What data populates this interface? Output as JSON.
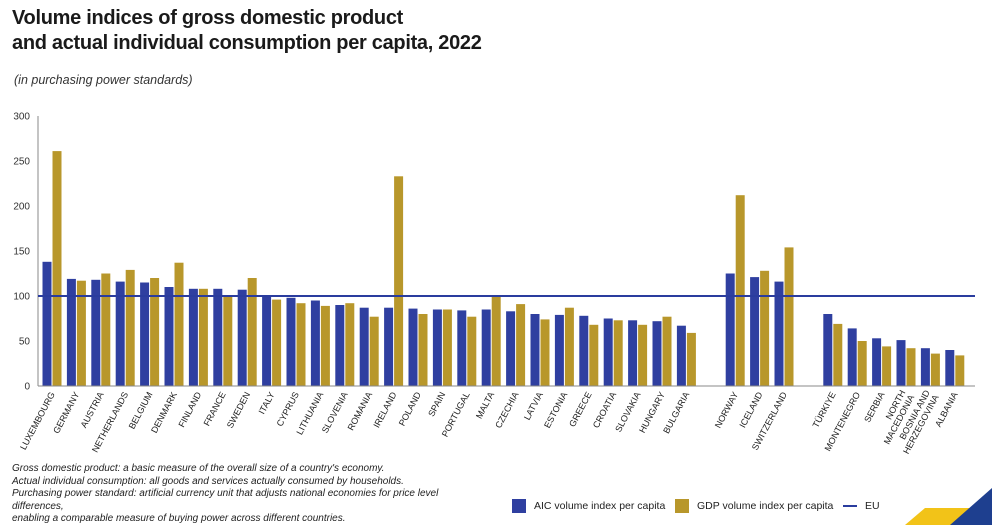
{
  "title_line1": "Volume indices of gross domestic product",
  "title_line2": "and actual individual consumption per capita, 2022",
  "subtitle": "(in purchasing power standards)",
  "notes": [
    "Gross domestic product: a basic measure of the overall size of a country's economy.",
    "Actual individual consumption: all goods and services actually consumed by households.",
    "Purchasing power standard: artificial currency unit that adjusts national economies for price level differences,",
    "enabling a comparable measure of buying power across different countries."
  ],
  "legend": {
    "aic": "AIC volume index per capita",
    "gdp": "GDP volume index per capita",
    "eu": "EU"
  },
  "colors": {
    "aic": "#2f3fa0",
    "gdp": "#b8972b",
    "eu_line": "#2a3c9e",
    "axis": "#888888",
    "corner_blue": "#1e3f8f",
    "corner_yellow": "#f2c318"
  },
  "chart_data": {
    "type": "bar",
    "title": "Volume indices of gross domestic product and actual individual consumption per capita, 2022",
    "ylabel": "",
    "ylim": [
      0,
      300
    ],
    "yticks": [
      0,
      50,
      100,
      150,
      200,
      250,
      300
    ],
    "reference_line": {
      "name": "EU",
      "value": 100
    },
    "groups": [
      {
        "categories": [
          "LUXEMBOURG",
          "GERMANY",
          "AUSTRIA",
          "NETHERLANDS",
          "BELGIUM",
          "DENMARK",
          "FINLAND",
          "FRANCE",
          "SWEDEN",
          "ITALY",
          "CYPRUS",
          "LITHUANIA",
          "SLOVENIA",
          "ROMANIA",
          "IRELAND",
          "POLAND",
          "SPAIN",
          "PORTUGAL",
          "MALTA",
          "CZECHIA",
          "LATVIA",
          "ESTONIA",
          "GREECE",
          "CROATIA",
          "SLOVAKIA",
          "HUNGARY",
          "BULGARIA"
        ]
      },
      {
        "categories": [
          "NORWAY",
          "ICELAND",
          "SWITZERLAND"
        ]
      },
      {
        "categories": [
          "TÜRKIYE",
          "MONTENEGRO",
          "SERBIA",
          "NORTH MACEDONIA",
          "BOSNIA AND HERZEGOVINA",
          "ALBANIA"
        ]
      }
    ],
    "series": [
      {
        "name": "AIC volume index per capita",
        "values": [
          138,
          119,
          118,
          116,
          115,
          110,
          108,
          108,
          107,
          100,
          98,
          95,
          90,
          87,
          87,
          86,
          85,
          84,
          85,
          83,
          80,
          79,
          78,
          75,
          73,
          72,
          67,
          125,
          121,
          116,
          80,
          64,
          53,
          51,
          42,
          40
        ]
      },
      {
        "name": "GDP volume index per capita",
        "values": [
          261,
          117,
          125,
          129,
          120,
          137,
          108,
          101,
          120,
          96,
          92,
          89,
          92,
          77,
          233,
          80,
          85,
          77,
          101,
          91,
          74,
          87,
          68,
          73,
          68,
          77,
          59,
          212,
          128,
          154,
          69,
          50,
          44,
          42,
          36,
          34
        ]
      }
    ]
  }
}
